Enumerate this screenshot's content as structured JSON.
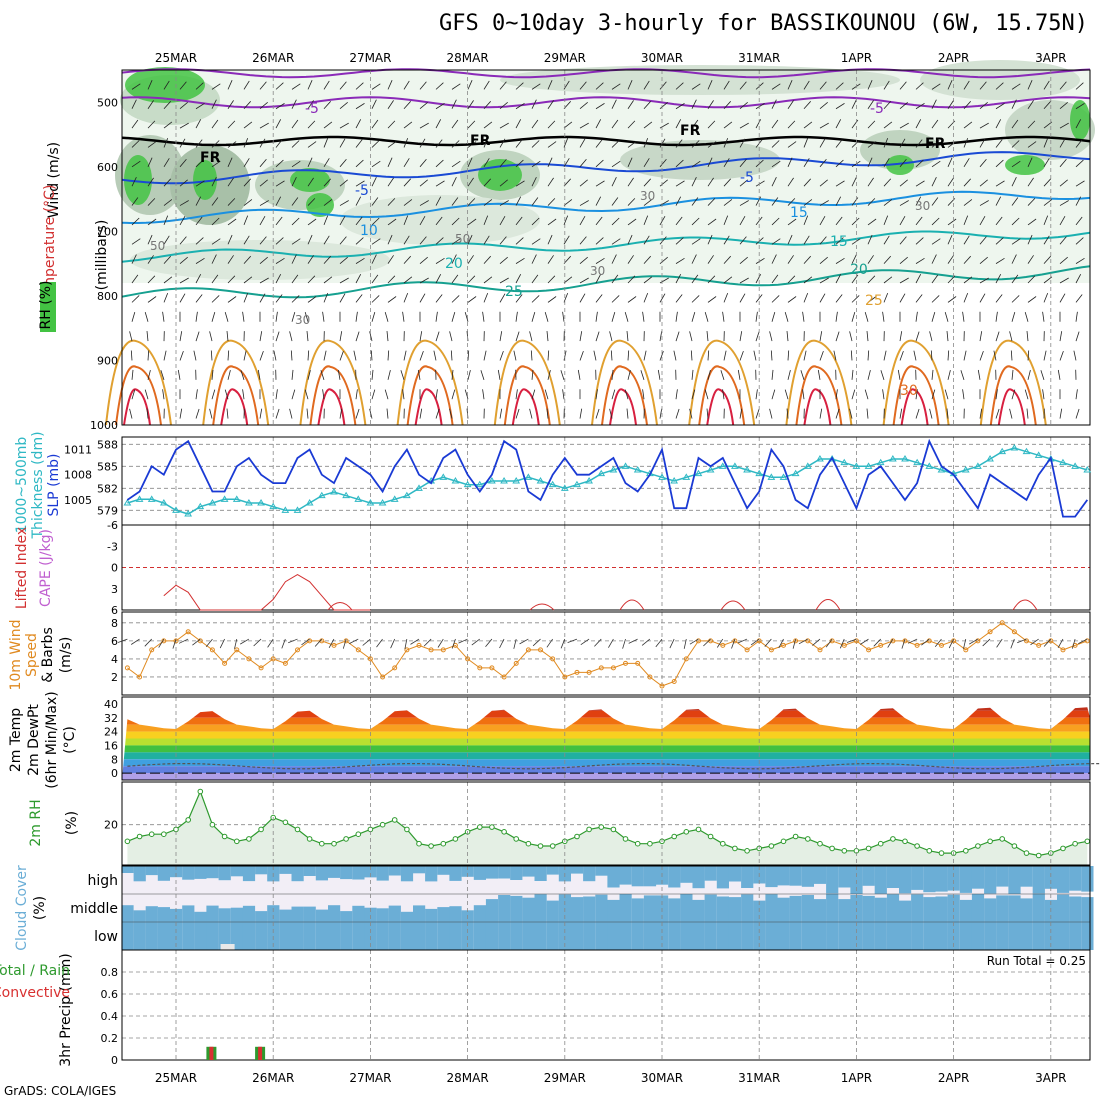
{
  "title": "GFS 0~10day 3-hourly for BASSIKOUNOU (6W, 15.75N)",
  "footer": "GrADS: COLA/IGES",
  "dates": [
    "25MAR",
    "26MAR",
    "27MAR",
    "28MAR",
    "29MAR",
    "30MAR",
    "31MAR",
    "1APR",
    "2APR",
    "3APR"
  ],
  "colors": {
    "rh_green": "#43c343",
    "slp": "#1a3ad4",
    "thickness": "#2fb8c4",
    "lifted": "#d23030",
    "wind10": "#e08a20",
    "rh2m": "#2e9a2e",
    "cloud": "#6baed6",
    "precip": "#d83030"
  },
  "panels": {
    "upper": {
      "ylabels": [
        "Wind (m/s)",
        "Temperature (°C)",
        "RH (%)",
        "(millibars)"
      ],
      "ticks": [
        "500",
        "600",
        "700",
        "800",
        "900",
        "1000"
      ],
      "temp_labels": [
        "-5",
        "-5",
        "FR",
        "FR",
        "FR",
        "FR",
        "-5",
        "-5",
        "10",
        "15",
        "15",
        "20",
        "20",
        "25",
        "25",
        "30"
      ],
      "rh_labels": [
        "50",
        "50",
        "30",
        "30",
        "30",
        "30"
      ]
    },
    "thick": {
      "ylabels": [
        "1000~500mb",
        "Thickness (dm)",
        "SLP (mb)"
      ],
      "ticks_left": [
        "588",
        "585",
        "582",
        "579"
      ],
      "ticks_right": [
        "1011",
        "1008",
        "1005"
      ]
    },
    "li": {
      "ylabels": [
        "Lifted Index",
        "CAPE (J/kg)"
      ],
      "ticks": [
        "-6",
        "-3",
        "0",
        "3",
        "6"
      ]
    },
    "wind": {
      "ylabels": [
        "10m Wind",
        "Speed",
        "& Barbs",
        "(m/s)"
      ],
      "ticks": [
        "8",
        "6",
        "4",
        "2"
      ]
    },
    "temp": {
      "ylabels": [
        "2m Temp",
        "2m DewPt",
        "(6hr Min/Max)",
        "(°C)"
      ],
      "ticks": [
        "40",
        "32",
        "24",
        "16",
        "8",
        "0"
      ]
    },
    "rh2m": {
      "ylabels": [
        "2m RH",
        "(%)"
      ],
      "ticks": [
        "20"
      ]
    },
    "cloud": {
      "ylabels": [
        "Cloud Cover",
        "(%)"
      ],
      "levels": [
        "high",
        "middle",
        "low"
      ]
    },
    "precip": {
      "ylabels": [
        "3hr Precip (mm)",
        "Total / Rain",
        "Convective"
      ],
      "ticks": [
        "0.8",
        "0.6",
        "0.4",
        "0.2",
        "0"
      ],
      "run_total": "Run Total = 0.25"
    }
  },
  "chart_data": [
    {
      "type": "line",
      "title": "1000~500mb Thickness (dm) & SLP (mb)",
      "x": [
        "24MAR12",
        "24MAR15",
        "24MAR18",
        "24MAR21",
        "25MAR00",
        "25MAR03",
        "25MAR06",
        "25MAR09",
        "25MAR12",
        "25MAR15",
        "25MAR18",
        "25MAR21",
        "26MAR00",
        "26MAR03",
        "26MAR06",
        "26MAR09",
        "26MAR12",
        "26MAR15",
        "26MAR18",
        "26MAR21",
        "27MAR00",
        "27MAR03",
        "27MAR06",
        "27MAR09",
        "27MAR12",
        "27MAR15",
        "27MAR18",
        "27MAR21",
        "28MAR00",
        "28MAR03",
        "28MAR06",
        "28MAR09",
        "28MAR12",
        "28MAR15",
        "28MAR18",
        "28MAR21",
        "29MAR00",
        "29MAR03",
        "29MAR06",
        "29MAR09",
        "29MAR12",
        "29MAR15",
        "29MAR18",
        "29MAR21",
        "30MAR00",
        "30MAR03",
        "30MAR06",
        "30MAR09",
        "30MAR12",
        "30MAR15",
        "30MAR18",
        "30MAR21",
        "31MAR00",
        "31MAR03",
        "31MAR06",
        "31MAR09",
        "31MAR12",
        "31MAR15",
        "31MAR18",
        "31MAR21",
        "1APR00",
        "1APR03",
        "1APR06",
        "1APR09",
        "1APR12",
        "1APR15",
        "1APR18",
        "1APR21",
        "2APR00",
        "2APR03",
        "2APR06",
        "2APR09",
        "2APR12",
        "2APR15",
        "2APR18",
        "2APR21",
        "3APR00",
        "3APR03",
        "3APR06",
        "3APR09"
      ],
      "series": [
        {
          "name": "SLP (mb)",
          "values": [
            1005,
            1006,
            1009,
            1008,
            1011,
            1012,
            1009,
            1006,
            1006,
            1009,
            1010,
            1008,
            1007,
            1007,
            1010,
            1011,
            1008,
            1007,
            1010,
            1009,
            1008,
            1006,
            1009,
            1011,
            1008,
            1007,
            1010,
            1011,
            1008,
            1006,
            1008,
            1012,
            1011,
            1006,
            1005,
            1008,
            1010,
            1008,
            1008,
            1009,
            1010,
            1007,
            1006,
            1008,
            1011,
            1004,
            1004,
            1010,
            1009,
            1010,
            1007,
            1004,
            1006,
            1011,
            1009,
            1005,
            1004,
            1008,
            1010,
            1007,
            1004,
            1008,
            1009,
            1007,
            1005,
            1007,
            1012,
            1009,
            1008,
            1006,
            1004,
            1008,
            1007,
            1006,
            1005,
            1008,
            1010,
            1003,
            1003,
            1005
          ]
        },
        {
          "name": "1000~500mb Thickness (dm)",
          "values": [
            580,
            580.5,
            580.5,
            580,
            579,
            578.5,
            579.5,
            580,
            580.5,
            580.5,
            580,
            580,
            579.5,
            579,
            579,
            580,
            581,
            581.5,
            581,
            580.5,
            580,
            580,
            580.5,
            581,
            582,
            583,
            583.5,
            583,
            582.5,
            582.5,
            583,
            583,
            583,
            583.5,
            583,
            582.5,
            582,
            582.5,
            583,
            584,
            584.5,
            585,
            584.5,
            584,
            583.5,
            583,
            583.5,
            584,
            584.5,
            585,
            585,
            584.5,
            584,
            583.5,
            583.5,
            584,
            585,
            586,
            586,
            585.5,
            585,
            585,
            585.5,
            586,
            586,
            585.5,
            585,
            584.5,
            584,
            584.5,
            585,
            586,
            587,
            587.5,
            587,
            586.5,
            586,
            585.5,
            585,
            584.5
          ]
        }
      ]
    },
    {
      "type": "line",
      "title": "10m Wind Speed (m/s)",
      "x": [
        "24MAR12",
        "24MAR15",
        "24MAR18",
        "24MAR21",
        "25MAR00",
        "25MAR03",
        "25MAR06",
        "25MAR09",
        "25MAR12",
        "25MAR15",
        "25MAR18",
        "25MAR21",
        "26MAR00",
        "26MAR03",
        "26MAR06",
        "26MAR09",
        "26MAR12",
        "26MAR15",
        "26MAR18",
        "26MAR21",
        "27MAR00",
        "27MAR03",
        "27MAR06",
        "27MAR09",
        "27MAR12",
        "27MAR15",
        "27MAR18",
        "27MAR21",
        "28MAR00",
        "28MAR03",
        "28MAR06",
        "28MAR09",
        "28MAR12",
        "28MAR15",
        "28MAR18",
        "28MAR21",
        "29MAR00",
        "29MAR03",
        "29MAR06",
        "29MAR09",
        "29MAR12",
        "29MAR15",
        "29MAR18",
        "29MAR21",
        "30MAR00",
        "30MAR03",
        "30MAR06",
        "30MAR09",
        "30MAR12",
        "30MAR15",
        "30MAR18",
        "30MAR21",
        "31MAR00",
        "31MAR03",
        "31MAR06",
        "31MAR09",
        "31MAR12",
        "31MAR15",
        "31MAR18",
        "31MAR21",
        "1APR00",
        "1APR03",
        "1APR06",
        "1APR09",
        "1APR12",
        "1APR15",
        "1APR18",
        "1APR21",
        "2APR00",
        "2APR03",
        "2APR06",
        "2APR09",
        "2APR12",
        "2APR15",
        "2APR18",
        "2APR21",
        "3APR00",
        "3APR03",
        "3APR06",
        "3APR09"
      ],
      "series": [
        {
          "name": "Speed",
          "values": [
            3,
            2,
            5,
            6,
            6,
            7,
            6,
            5,
            3.5,
            5,
            4,
            3,
            4,
            3.5,
            5,
            6,
            6,
            5.5,
            6,
            5,
            4,
            2,
            3,
            5,
            5.5,
            5,
            5,
            5.5,
            4,
            3,
            3,
            2,
            3.5,
            5,
            5,
            4,
            2,
            2.5,
            2.5,
            3,
            3,
            3.5,
            3.5,
            2,
            1,
            1.5,
            4,
            6,
            6,
            5.5,
            6,
            5,
            6,
            5,
            5.5,
            6,
            6,
            5,
            6,
            5.5,
            6,
            5,
            5.5,
            6,
            6,
            5.5,
            6,
            5.5,
            6,
            5,
            6,
            7,
            8,
            7,
            6,
            5.5,
            6,
            5,
            5.5,
            6
          ]
        }
      ]
    },
    {
      "type": "line",
      "title": "Lifted Index",
      "x": [
        "24MAR21",
        "25MAR00",
        "25MAR03",
        "25MAR06",
        "25MAR09",
        "25MAR12",
        "25MAR15",
        "25MAR18",
        "25MAR21",
        "26MAR00",
        "26MAR03",
        "26MAR06",
        "26MAR09",
        "26MAR12",
        "26MAR15",
        "26MAR18",
        "26MAR21",
        "27MAR00"
      ],
      "series": [
        {
          "name": "Lifted Index",
          "values": [
            4,
            2.5,
            3.5,
            6,
            6,
            6,
            6,
            6,
            6,
            4.5,
            2,
            1,
            2,
            4,
            6,
            6,
            6,
            6
          ]
        }
      ]
    },
    {
      "type": "line",
      "title": "2m RH (%)",
      "x": [
        "24MAR12",
        "24MAR15",
        "24MAR18",
        "24MAR21",
        "25MAR00",
        "25MAR03",
        "25MAR06",
        "25MAR09",
        "25MAR12",
        "25MAR15",
        "25MAR18",
        "25MAR21",
        "26MAR00",
        "26MAR03",
        "26MAR06",
        "26MAR09",
        "26MAR12",
        "26MAR15",
        "26MAR18",
        "26MAR21",
        "27MAR00",
        "27MAR03",
        "27MAR06",
        "27MAR09",
        "27MAR12",
        "27MAR15",
        "27MAR18",
        "27MAR21",
        "28MAR00",
        "28MAR03",
        "28MAR06",
        "28MAR09",
        "28MAR12",
        "28MAR15",
        "28MAR18",
        "28MAR21",
        "29MAR00",
        "29MAR03",
        "29MAR06",
        "29MAR09",
        "29MAR12",
        "29MAR15",
        "29MAR18",
        "29MAR21",
        "30MAR00",
        "30MAR03",
        "30MAR06",
        "30MAR09",
        "30MAR12",
        "30MAR15",
        "30MAR18",
        "30MAR21",
        "31MAR00",
        "31MAR03",
        "31MAR06",
        "31MAR09",
        "31MAR12",
        "31MAR15",
        "31MAR18",
        "31MAR21",
        "1APR00",
        "1APR03",
        "1APR06",
        "1APR09",
        "1APR12",
        "1APR15",
        "1APR18",
        "1APR21",
        "2APR00",
        "2APR03",
        "2APR06",
        "2APR09",
        "2APR12",
        "2APR15",
        "2APR18",
        "2APR21",
        "3APR00",
        "3APR03",
        "3APR06",
        "3APR09"
      ],
      "series": [
        {
          "name": "2m RH",
          "values": [
            13,
            15,
            16,
            16,
            18,
            22,
            34,
            20,
            15,
            13,
            14,
            18,
            23,
            21,
            18,
            14,
            12,
            12,
            14,
            16,
            18,
            20,
            22,
            18,
            12,
            11,
            12,
            14,
            17,
            19,
            19,
            17,
            14,
            12,
            11,
            11,
            13,
            15,
            18,
            19,
            18,
            14,
            12,
            12,
            13,
            15,
            17,
            18,
            15,
            12,
            10,
            9,
            10,
            11,
            13,
            15,
            14,
            12,
            10,
            9,
            9,
            10,
            12,
            14,
            13,
            11,
            9,
            8,
            8,
            9,
            11,
            13,
            14,
            11,
            8,
            7,
            8,
            10,
            12,
            13
          ]
        }
      ]
    },
    {
      "type": "bar",
      "title": "3hr Precip (mm)",
      "x": [
        "25MAR03",
        "25MAR12"
      ],
      "series": [
        {
          "name": "Total / Rain",
          "values": [
            0.12,
            0.12
          ]
        },
        {
          "name": "Convective",
          "values": [
            0.12,
            0.12
          ]
        }
      ],
      "ylim": [
        0,
        1
      ]
    }
  ]
}
